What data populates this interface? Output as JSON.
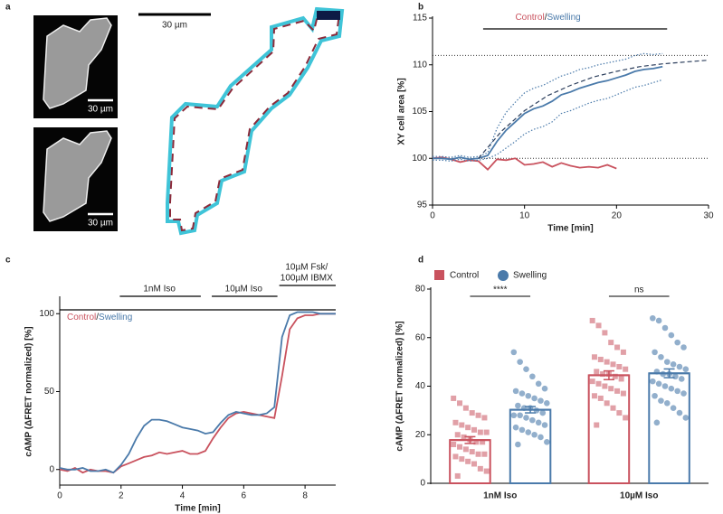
{
  "images": {
    "panel": "a",
    "scale_bars": [
      "30 µm",
      "30 µm",
      "30 µm"
    ]
  },
  "chart_data": [
    {
      "type": "line",
      "panel": "b",
      "xlabel": "Time [min]",
      "ylabel": "XY cell area [%]",
      "xlim": [
        0,
        30
      ],
      "xticks": [
        0,
        10,
        20,
        30
      ],
      "ylim": [
        95,
        115
      ],
      "yticks": [
        95,
        100,
        105,
        110,
        115
      ],
      "legend_separator": "/",
      "hlines": [
        100,
        111
      ],
      "period": [
        5.5,
        25.5
      ],
      "series": [
        {
          "name": "Control",
          "color": "#c9525e",
          "style": "solid",
          "x": [
            0,
            1,
            2,
            3,
            4,
            5,
            6,
            7,
            8,
            9,
            10,
            11,
            12,
            13,
            14,
            15,
            16,
            17,
            18,
            19,
            20
          ],
          "values": [
            100,
            100.1,
            99.9,
            99.6,
            99.8,
            99.7,
            98.8,
            99.9,
            99.8,
            100,
            99.3,
            99.4,
            99.6,
            99.1,
            99.5,
            99.2,
            99.0,
            99.1,
            99.0,
            99.3,
            98.9
          ]
        },
        {
          "name": "Swelling",
          "color": "#4a7aaa",
          "style": "solid",
          "x": [
            0,
            1,
            2,
            3,
            4,
            5,
            6,
            7,
            8,
            9,
            10,
            11,
            12,
            13,
            14,
            15,
            16,
            17,
            18,
            19,
            20,
            21,
            22,
            23,
            24,
            25
          ],
          "values": [
            100,
            100,
            99.9,
            100.1,
            99.9,
            100,
            100.3,
            101.8,
            103,
            103.9,
            104.8,
            105.3,
            105.6,
            106.1,
            106.8,
            107.1,
            107.5,
            107.8,
            108.1,
            108.3,
            108.6,
            108.9,
            109.3,
            109.5,
            109.6,
            109.8
          ]
        },
        {
          "color": "#4a7aaa",
          "style": "dotted",
          "x": [
            0,
            1,
            2,
            3,
            4,
            5,
            6,
            7,
            8,
            9,
            10,
            11,
            12,
            13,
            14,
            15,
            16,
            17,
            18,
            19,
            20,
            21,
            22,
            23,
            24,
            25
          ],
          "values": [
            100.2,
            100.2,
            100.1,
            100.3,
            100.1,
            100.2,
            100.6,
            103.2,
            104.9,
            106,
            107,
            107.5,
            107.8,
            108.3,
            108.8,
            109.1,
            109.5,
            109.7,
            110,
            110.2,
            110.4,
            110.6,
            111,
            111.2,
            111.1,
            111.2
          ]
        },
        {
          "color": "#4a7aaa",
          "style": "dotted",
          "x": [
            0,
            1,
            2,
            3,
            4,
            5,
            6,
            7,
            8,
            9,
            10,
            11,
            12,
            13,
            14,
            15,
            16,
            17,
            18,
            19,
            20,
            21,
            22,
            23,
            24,
            25
          ],
          "values": [
            99.8,
            99.8,
            99.7,
            99.9,
            99.7,
            99.8,
            100,
            100.4,
            101.1,
            101.8,
            102.6,
            103.1,
            103.4,
            103.9,
            104.8,
            105.1,
            105.5,
            105.9,
            106.2,
            106.4,
            106.8,
            107.2,
            107.6,
            107.8,
            108.1,
            108.4
          ]
        },
        {
          "color": "#2c3e5c",
          "style": "dashed",
          "x": [
            5,
            7.5,
            10,
            12.5,
            15,
            17.5,
            20,
            22.5,
            25,
            27.5,
            30
          ],
          "values": [
            100,
            102.9,
            105.1,
            106.7,
            107.8,
            108.7,
            109.3,
            109.8,
            110.1,
            110.3,
            110.5
          ]
        }
      ]
    },
    {
      "type": "line",
      "panel": "c",
      "xlabel": "Time [min]",
      "ylabel": "cAMP (ΔFRET normalized) [%]",
      "xlim": [
        0,
        9
      ],
      "xticks": [
        0,
        2,
        4,
        6,
        8
      ],
      "ylim": [
        -10,
        110
      ],
      "yticks": [
        0,
        50,
        100
      ],
      "legend_separator": "/",
      "stimuli": [
        {
          "label": [
            "1nM Iso"
          ],
          "start": 1.9,
          "end": 4.6
        },
        {
          "label": [
            "10µM Iso"
          ],
          "start": 4.9,
          "end": 7.1
        },
        {
          "label": [
            "10µM Fsk/",
            "100µM IBMX"
          ],
          "start": 7.1,
          "end": 9
        }
      ],
      "series": [
        {
          "name": "Control",
          "color": "#c9525e",
          "style": "solid",
          "x": [
            0,
            0.25,
            0.5,
            0.75,
            1,
            1.25,
            1.5,
            1.75,
            2,
            2.25,
            2.5,
            2.75,
            3,
            3.25,
            3.5,
            3.75,
            4,
            4.25,
            4.5,
            4.75,
            5,
            5.25,
            5.5,
            5.75,
            6,
            6.25,
            6.5,
            6.75,
            7,
            7.25,
            7.5,
            7.75,
            8,
            8.25,
            8.5,
            8.75,
            9
          ],
          "values": [
            0,
            -1,
            1,
            -2,
            0,
            -1,
            -1,
            -2,
            2,
            4,
            6,
            8,
            9,
            11,
            10,
            11,
            12,
            10,
            10,
            12,
            20,
            27,
            33,
            36,
            37,
            36,
            35,
            34,
            33,
            60,
            90,
            97,
            99,
            99,
            100,
            100,
            100
          ]
        },
        {
          "name": "Swelling",
          "color": "#4a7aaa",
          "style": "solid",
          "x": [
            0,
            0.25,
            0.5,
            0.75,
            1,
            1.25,
            1.5,
            1.75,
            2,
            2.25,
            2.5,
            2.75,
            3,
            3.25,
            3.5,
            3.75,
            4,
            4.25,
            4.5,
            4.75,
            5,
            5.25,
            5.5,
            5.75,
            6,
            6.25,
            6.5,
            6.75,
            7,
            7.25,
            7.5,
            7.75,
            8,
            8.25,
            8.5,
            8.75,
            9
          ],
          "values": [
            1,
            0,
            0,
            1,
            -1,
            -1,
            0,
            -2,
            3,
            10,
            20,
            28,
            32,
            32,
            31,
            29,
            27,
            26,
            25,
            23,
            24,
            30,
            35,
            37,
            36,
            35,
            35,
            36,
            40,
            85,
            99,
            101,
            101,
            101,
            100,
            100,
            100
          ]
        }
      ]
    },
    {
      "type": "bar",
      "panel": "d",
      "ylabel": "cAMP (ΔFRET normalized) [%]",
      "categories": [
        "1nM Iso",
        "10µM Iso"
      ],
      "significance": [
        "****",
        "ns"
      ],
      "ylim": [
        0,
        80
      ],
      "yticks": [
        0,
        20,
        40,
        60,
        80
      ],
      "series": [
        {
          "name": "Control",
          "color": "#c9525e",
          "marker": "square",
          "values": [
            17.8,
            44.5
          ],
          "errors": [
            1.4,
            1.8
          ],
          "points": [
            [
              35,
              33,
              31,
              29,
              28,
              27,
              25,
              24,
              23,
              22,
              21,
              21,
              20,
              19,
              18,
              17,
              17,
              16,
              15,
              14,
              13,
              12,
              12,
              11,
              10,
              9,
              8,
              6,
              5,
              3
            ],
            [
              67,
              65,
              62,
              58,
              56,
              54,
              52,
              51,
              50,
              49,
              48,
              47,
              46,
              45,
              45,
              44,
              43,
              42,
              41,
              40,
              39,
              38,
              37,
              36,
              35,
              33,
              31,
              29,
              27,
              24
            ]
          ]
        },
        {
          "name": "Swelling",
          "color": "#4a7aaa",
          "marker": "circle",
          "values": [
            30.3,
            45.3
          ],
          "errors": [
            1.3,
            1.8
          ],
          "points": [
            [
              54,
              50,
              47,
              44,
              41,
              39,
              38,
              37,
              36,
              35,
              34,
              33,
              32,
              31,
              31,
              30,
              29,
              28,
              28,
              27,
              26,
              25,
              24,
              23,
              22,
              21,
              20,
              19,
              17,
              16
            ],
            [
              68,
              67,
              64,
              61,
              58,
              56,
              54,
              52,
              50,
              49,
              48,
              47,
              46,
              45,
              45,
              44,
              43,
              42,
              41,
              40,
              39,
              38,
              37,
              36,
              34,
              33,
              31,
              29,
              27,
              25
            ]
          ]
        }
      ]
    }
  ]
}
